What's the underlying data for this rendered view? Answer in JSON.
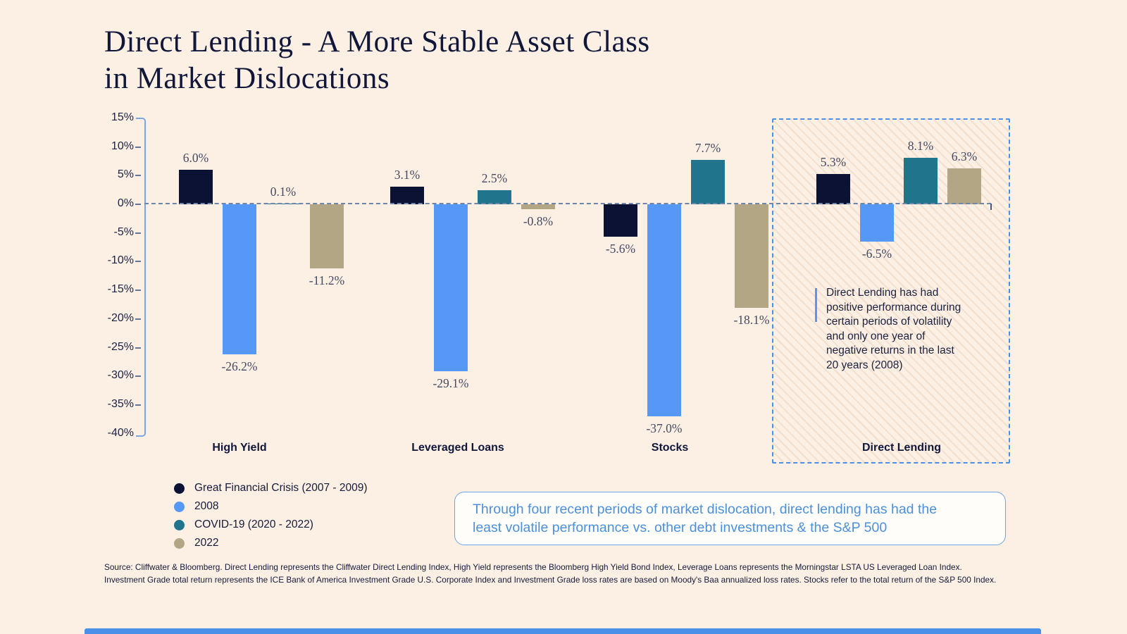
{
  "title": "Direct Lending - A More Stable Asset Class\nin Market Dislocations",
  "chart_data": {
    "type": "bar",
    "categories": [
      "High Yield",
      "Leveraged Loans",
      "Stocks",
      "Direct Lending"
    ],
    "series": [
      {
        "name": "Great Financial Crisis (2007 - 2009)",
        "color": "#0c1233",
        "values": [
          6.0,
          3.1,
          -5.6,
          5.3
        ],
        "labels": [
          "6.0%",
          "3.1%",
          "-5.6%",
          "5.3%"
        ]
      },
      {
        "name": "2008",
        "color": "#5598f6",
        "values": [
          -26.2,
          -29.1,
          -37.0,
          -6.5
        ],
        "labels": [
          "-26.2%",
          "-29.1%",
          "-37.0%",
          "-6.5%"
        ]
      },
      {
        "name": "COVID-19 (2020 - 2022)",
        "color": "#20758d",
        "values": [
          0.1,
          2.5,
          7.7,
          8.1
        ],
        "labels": [
          "0.1%",
          "2.5%",
          "7.7%",
          "8.1%"
        ]
      },
      {
        "name": "2022",
        "color": "#b3a685",
        "values": [
          -11.2,
          -0.8,
          -18.1,
          6.3
        ],
        "labels": [
          "-11.2%",
          "-0.8%",
          "-18.1%",
          "6.3%"
        ]
      }
    ],
    "y_tick_labels": [
      "15%",
      "10%",
      "5%",
      "0%",
      "-5%",
      "-10%",
      "-15%",
      "-20%",
      "-25%",
      "-30%",
      "-35%",
      "-40%"
    ],
    "ylim": [
      -40,
      15
    ],
    "grid": "off",
    "legend_position": "bottom-left",
    "highlighted_category": "Direct Lending"
  },
  "annotation": {
    "text": "Direct Lending has had\npositive performance during\ncertain periods of volatility\nand only one year of\nnegative returns in the last\n20 years (2008)"
  },
  "legend": {
    "items": [
      {
        "label": "Great Financial Crisis (2007 - 2009)"
      },
      {
        "label": "2008"
      },
      {
        "label": "COVID-19 (2020 - 2022)"
      },
      {
        "label": "2022"
      }
    ]
  },
  "callout": {
    "text": "Through four recent periods of market dislocation, direct lending has had the\nleast volatile performance vs. other debt investments & the S&P 500"
  },
  "source": {
    "text": "Source: Cliffwater & Bloomberg. Direct Lending represents the Cliffwater Direct Lending Index, High Yield represents the Bloomberg High Yield Bond Index, Leverage Loans represents the Morningstar LSTA US Leveraged Loan Index.\nInvestment Grade total return represents the ICE Bank of America Investment Grade U.S. Corporate Index and Investment Grade loss rates are based on Moody's Baa annualized loss rates. Stocks refer to the total return of the S&P 500 Index."
  },
  "colors": {
    "background": "#fcf0e4",
    "navy": "#0c1233",
    "blue": "#5598f6",
    "teal": "#20758d",
    "tan": "#b3a685",
    "axis": "#7ba6e0",
    "highlight_border": "#4a90e8",
    "callout_text": "#4b90da"
  }
}
